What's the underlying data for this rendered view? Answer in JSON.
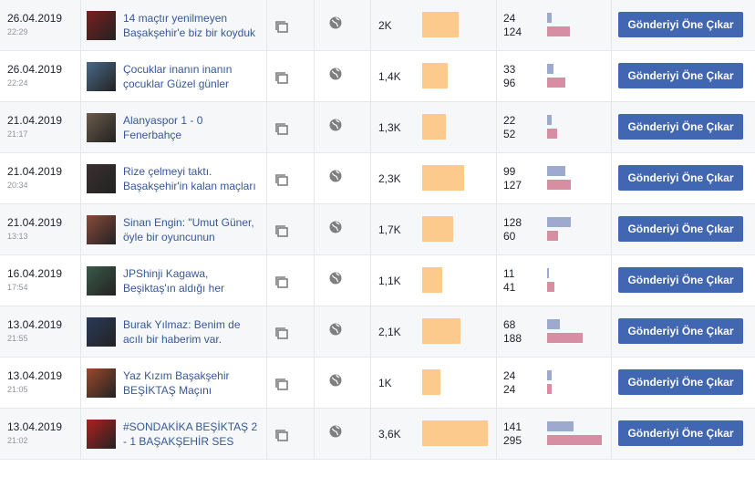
{
  "posts": [
    {
      "date": "26.04.2019",
      "time": "22:29",
      "title": [
        "14 maçtır yenilmeyen",
        "Başakşehir'e biz bir koyduk"
      ],
      "reach": {
        "value": 2000,
        "label": "2K"
      },
      "engagement": [
        24,
        124
      ],
      "button": "Gönderiyi Öne Çıkar"
    },
    {
      "date": "26.04.2019",
      "time": "22:24",
      "title": [
        "Çocuklar inanın inanın",
        "çocuklar Güzel günler"
      ],
      "reach": {
        "value": 1400,
        "label": "1,4K"
      },
      "engagement": [
        33,
        96
      ],
      "button": "Gönderiyi Öne Çıkar"
    },
    {
      "date": "21.04.2019",
      "time": "21:17",
      "title": [
        "Alanyaspor 1 - 0",
        "Fenerbahçe"
      ],
      "reach": {
        "value": 1300,
        "label": "1,3K"
      },
      "engagement": [
        22,
        52
      ],
      "button": "Gönderiyi Öne Çıkar"
    },
    {
      "date": "21.04.2019",
      "time": "20:34",
      "title": [
        "Rize çelmeyi taktı.",
        "Başakşehir'in kalan maçları"
      ],
      "reach": {
        "value": 2300,
        "label": "2,3K"
      },
      "engagement": [
        99,
        127
      ],
      "button": "Gönderiyi Öne Çıkar"
    },
    {
      "date": "21.04.2019",
      "time": "13:13",
      "title": [
        "Sinan Engin: \"Umut Güner,",
        "öyle bir oyuncunun"
      ],
      "reach": {
        "value": 1700,
        "label": "1,7K"
      },
      "engagement": [
        128,
        60
      ],
      "button": "Gönderiyi Öne Çıkar"
    },
    {
      "date": "16.04.2019",
      "time": "17:54",
      "title": [
        "JPShinji Kagawa,",
        "Beşiktaş'ın aldığı her"
      ],
      "reach": {
        "value": 1100,
        "label": "1,1K"
      },
      "engagement": [
        11,
        41
      ],
      "button": "Gönderiyi Öne Çıkar"
    },
    {
      "date": "13.04.2019",
      "time": "21:55",
      "title": [
        "Burak Yılmaz: Benim de",
        "acılı bir haberim var."
      ],
      "reach": {
        "value": 2100,
        "label": "2,1K"
      },
      "engagement": [
        68,
        188
      ],
      "button": "Gönderiyi Öne Çıkar"
    },
    {
      "date": "13.04.2019",
      "time": "21:05",
      "title": [
        "Yaz Kızım Başakşehir",
        "BEŞİKTAŞ Maçını"
      ],
      "reach": {
        "value": 1000,
        "label": "1K"
      },
      "engagement": [
        24,
        24
      ],
      "button": "Gönderiyi Öne Çıkar"
    },
    {
      "date": "13.04.2019",
      "time": "21:02",
      "title": [
        "#SONDAKİKA BEŞİKTAŞ 2",
        "- 1 BAŞAKŞEHİR SES"
      ],
      "reach": {
        "value": 3600,
        "label": "3,6K"
      },
      "engagement": [
        141,
        295
      ],
      "button": "Gönderiyi Öne Çıkar"
    }
  ]
}
